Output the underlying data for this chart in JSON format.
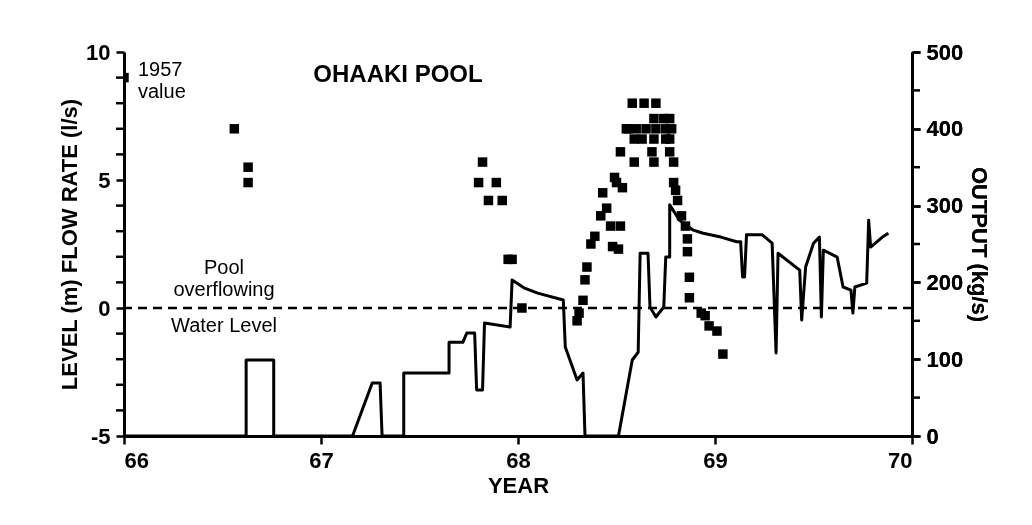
{
  "chart_data": {
    "type": "scatter",
    "title": "OHAAKI POOL",
    "xlabel": "YEAR",
    "ylabel": "LEVEL (m) FLOW RATE (l/s)",
    "y2label": "OUTPUT (kg/s)",
    "xlim": [
      66,
      70
    ],
    "xticks": [
      66,
      67,
      68,
      69,
      70
    ],
    "ylim": [
      -5,
      10
    ],
    "yticks": [
      -5,
      {
        "value": -4,
        "label": null
      },
      {
        "value": -3,
        "label": null
      },
      {
        "value": -2,
        "label": null
      },
      {
        "value": -1,
        "label": null
      },
      0,
      {
        "value": 1,
        "label": null
      },
      {
        "value": 2,
        "label": null
      },
      {
        "value": 3,
        "label": null
      },
      {
        "value": 4,
        "label": null
      },
      5,
      {
        "value": 6,
        "label": null
      },
      {
        "value": 7,
        "label": null
      },
      {
        "value": 8,
        "label": null
      },
      {
        "value": 9,
        "label": null
      },
      10
    ],
    "y2lim": [
      0,
      500
    ],
    "y2ticks": [
      0,
      {
        "value": 50,
        "label": null
      },
      100,
      {
        "value": 150,
        "label": null
      },
      200,
      {
        "value": 250,
        "label": null
      },
      300,
      {
        "value": 350,
        "label": null
      },
      400,
      {
        "value": 450,
        "label": null
      },
      500
    ],
    "grid": false,
    "series": [
      {
        "color": "#000000",
        "marker": "square",
        "x": [
          66.0,
          66.56,
          66.63,
          66.63,
          67.82,
          67.8,
          67.89,
          67.85,
          67.92,
          67.95,
          67.97,
          68.02,
          68.3,
          68.31,
          68.33,
          68.34,
          68.35,
          68.37,
          68.39,
          68.42,
          68.43,
          68.45,
          68.47,
          68.48,
          68.49,
          68.5,
          68.51,
          68.53,
          68.52,
          68.52,
          68.56,
          68.58,
          68.64,
          68.7,
          68.69,
          68.74,
          68.77,
          68.55,
          68.6,
          68.65,
          68.7,
          68.75,
          68.78,
          68.59,
          68.63,
          68.69,
          68.75,
          68.77,
          68.68,
          68.77,
          68.59,
          68.69,
          68.79,
          68.79,
          68.8,
          68.81,
          68.83,
          68.85,
          68.86,
          68.86,
          68.87,
          68.87,
          68.93,
          68.95,
          68.97,
          69.01,
          69.04
        ],
        "values": [
          9.0,
          7.0,
          5.5,
          4.9,
          5.7,
          4.9,
          4.9,
          4.2,
          4.2,
          1.9,
          1.9,
          0.0,
          -0.5,
          -0.2,
          0.3,
          1.1,
          1.6,
          2.5,
          2.8,
          3.6,
          4.5,
          3.9,
          3.2,
          2.4,
          5.1,
          4.9,
          2.3,
          4.7,
          3.2,
          6.1,
          7.0,
          8.0,
          8.0,
          8.0,
          7.4,
          7.4,
          7.4,
          7.0,
          7.0,
          7.0,
          7.0,
          7.0,
          7.0,
          6.6,
          6.6,
          6.6,
          6.6,
          6.6,
          6.1,
          6.1,
          5.7,
          5.7,
          5.7,
          4.9,
          4.6,
          4.2,
          3.6,
          3.2,
          2.7,
          2.2,
          1.2,
          0.4,
          -0.2,
          -0.3,
          -0.7,
          -0.9,
          -1.8
        ]
      },
      {
        "type": "line",
        "axis": "y2",
        "color": "#000000",
        "line_style": "solid",
        "x": [
          66.0,
          66.62,
          66.62,
          66.76,
          66.76,
          67.16,
          67.26,
          67.3,
          67.31,
          67.42,
          67.42,
          67.65,
          67.65,
          67.72,
          67.74,
          67.78,
          67.79,
          67.82,
          67.83,
          67.96,
          67.97,
          68.03,
          68.1,
          68.23,
          68.24,
          68.3,
          68.33,
          68.34,
          68.51,
          68.58,
          68.61,
          68.62,
          68.66,
          68.67,
          68.7,
          68.74,
          68.75,
          68.77,
          68.77,
          68.82,
          68.89,
          68.94,
          69.03,
          69.11,
          69.13,
          69.14,
          69.15,
          69.16,
          69.24,
          69.29,
          69.31,
          69.32,
          69.43,
          69.44,
          69.46,
          69.5,
          69.53,
          69.54,
          69.55,
          69.62,
          69.65,
          69.69,
          69.7,
          69.71,
          69.77,
          69.78,
          69.79,
          69.85,
          69.88
        ],
        "values": [
          0,
          0,
          99,
          99,
          0,
          0,
          69,
          69,
          0,
          0,
          82,
          82,
          122,
          122,
          134,
          134,
          60,
          60,
          147,
          142,
          203,
          193,
          186,
          177,
          116,
          73,
          82,
          0,
          0,
          99,
          109,
          238,
          238,
          168,
          155,
          168,
          233,
          233,
          301,
          281,
          268,
          264,
          259,
          253,
          253,
          207,
          207,
          262,
          262,
          251,
          108,
          238,
          216,
          151,
          220,
          251,
          259,
          155,
          242,
          233,
          194,
          190,
          160,
          194,
          199,
          281,
          246,
          259,
          264
        ]
      }
    ],
    "ref_lines": [
      {
        "axis": "y",
        "value": 0,
        "line_style": "dashed",
        "color": "#000000"
      }
    ],
    "annotations": [
      {
        "text": "1957 value",
        "x": 66.0,
        "y": 9.0
      },
      "Pool overflowing",
      "Water Level"
    ]
  }
}
